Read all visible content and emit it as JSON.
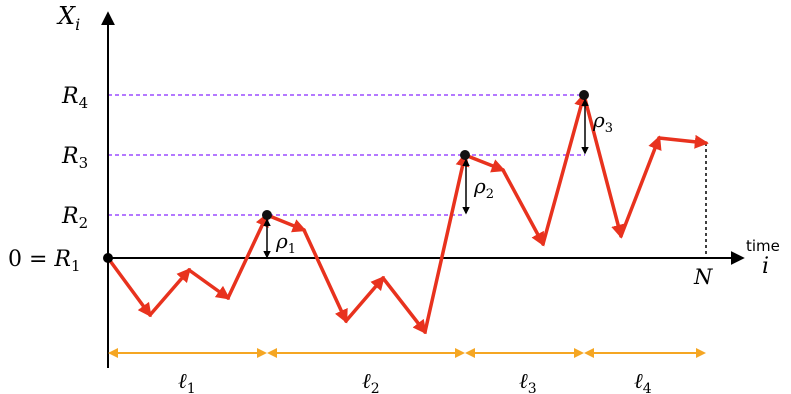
{
  "axes": {
    "y_label": "X",
    "y_label_sub": "i",
    "x_label_top": "time",
    "x_label_bottom": "i",
    "end_label": "N",
    "origin_prefix": "0 = ",
    "origin_label": "R",
    "origin_sub": "1"
  },
  "levels": [
    {
      "label": "R",
      "sub": "2"
    },
    {
      "label": "R",
      "sub": "3"
    },
    {
      "label": "R",
      "sub": "4"
    }
  ],
  "drops": [
    {
      "label": "ρ",
      "sub": "1"
    },
    {
      "label": "ρ",
      "sub": "2"
    },
    {
      "label": "ρ",
      "sub": "3"
    }
  ],
  "intervals": [
    {
      "label": "ℓ",
      "sub": "1"
    },
    {
      "label": "ℓ",
      "sub": "2"
    },
    {
      "label": "ℓ",
      "sub": "3"
    },
    {
      "label": "ℓ",
      "sub": "4"
    }
  ],
  "colors": {
    "walk": "#e8321e",
    "level_lines": "#9b4dff",
    "interval_arrows": "#f5a623",
    "axes": "#000000"
  }
}
